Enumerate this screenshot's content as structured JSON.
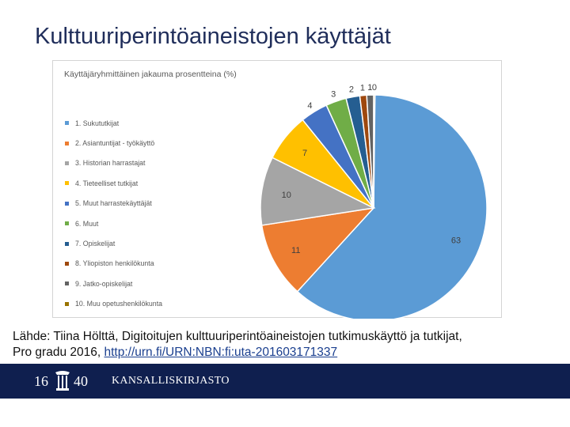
{
  "slide": {
    "title": "Kulttuuriperintöaineistojen käyttäjät",
    "source_line1": "Lähde: Tiina Hölttä, Digitoitujen kulttuuriperintöaineistojen tutkimuskäyttö ja tutkijat,",
    "source_line2_prefix": "Pro gradu 2016, ",
    "source_link": "http://urn.fi/URN:NBN:fi:uta-201603171337"
  },
  "footer": {
    "logo_left": "16",
    "logo_right": "40",
    "organization": "KANSALLISKIRJASTO",
    "background": "#0f1f4f"
  },
  "chart_data": {
    "type": "pie",
    "title": "Käyttäjäryhmittäinen jakauma prosentteina (%)",
    "legend_position": "left",
    "categories": [
      "1. Sukututkijat",
      "2. Asiantuntijat - työkäyttö",
      "3. Historian harrastajat",
      "4. Tieteelliset tutkijat",
      "5. Muut harrastekäyttäjät",
      "6. Muut",
      "7. Opiskelijat",
      "8. Yliopiston henkilökunta",
      "9. Jatko-opiskelijat",
      "10. Muu opetushenkilökunta"
    ],
    "values": [
      63,
      11,
      10,
      7,
      4,
      3,
      2,
      1,
      1,
      0
    ],
    "data_labels": [
      "63",
      "11",
      "10",
      "7",
      "4",
      "3",
      "2",
      "1",
      "1",
      "0"
    ],
    "colors": [
      "#5b9bd5",
      "#ed7d31",
      "#a5a5a5",
      "#ffc000",
      "#4472c4",
      "#70ad47",
      "#255e91",
      "#9e480e",
      "#636363",
      "#997300"
    ]
  }
}
